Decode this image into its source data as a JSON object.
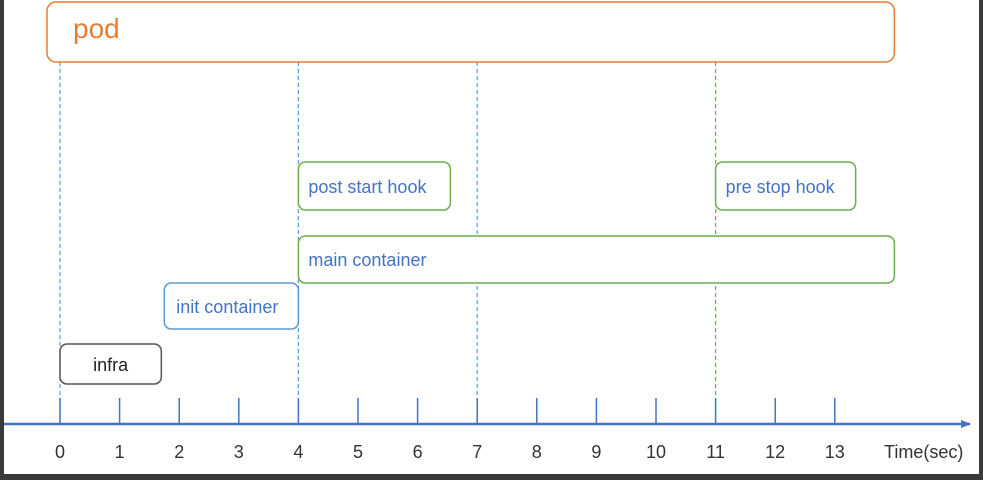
{
  "pod": {
    "label": "pod",
    "start": 0,
    "end": 14
  },
  "phases": {
    "infra": {
      "label": "infra",
      "start": 0,
      "end": 1.7
    },
    "init": {
      "label": "init container",
      "start": 1.75,
      "end": 4
    },
    "main": {
      "label": "main container",
      "start": 4,
      "end": 14
    },
    "post_start": {
      "label": "post start hook",
      "start": 4,
      "end": 6.55
    },
    "pre_stop": {
      "label": "pre stop hook",
      "start": 11,
      "end": 13.35
    }
  },
  "markers": [
    0,
    4,
    7,
    11
  ],
  "axis": {
    "label": "Time(sec)",
    "ticks": [
      "0",
      "1",
      "2",
      "3",
      "4",
      "5",
      "6",
      "7",
      "8",
      "9",
      "10",
      "11",
      "12",
      "13"
    ]
  },
  "colors": {
    "orange": "#e67e32",
    "green": "#6ab04c",
    "blue": "#4472c4",
    "light_blue": "#5b9bd5",
    "infra_border": "#555555",
    "tick_text": "#333333"
  }
}
